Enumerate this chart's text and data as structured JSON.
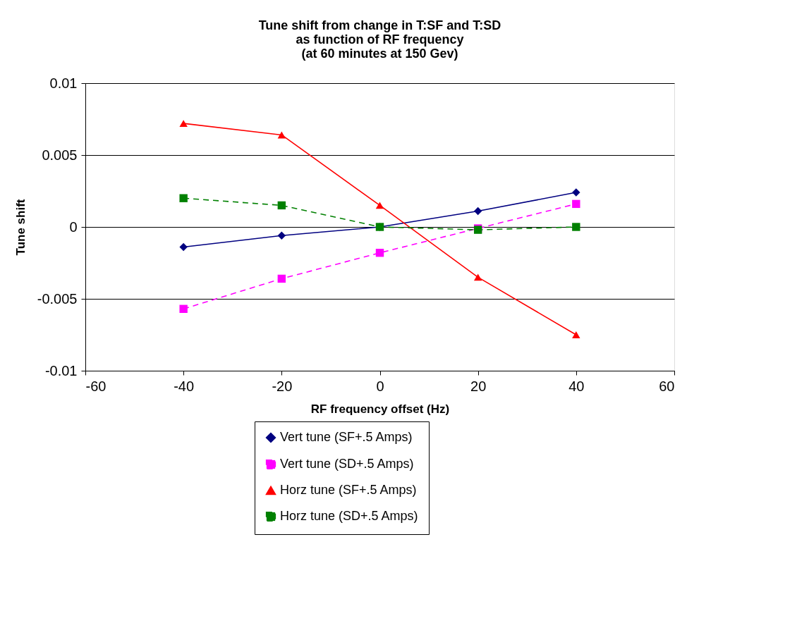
{
  "chart_data": {
    "type": "line",
    "title": "Tune shift from change in T:SF and T:SD\nas function of RF frequency\n(at 60 minutes at 150 Gev)",
    "xlabel": "RF frequency offset (Hz)",
    "ylabel": "Tune shift",
    "x": [
      -40,
      -20,
      0,
      20,
      40
    ],
    "series": [
      {
        "name": "Vert tune (SF+.5 Amps)",
        "color": "#000080",
        "marker": "diamond",
        "line_style": "solid",
        "values": [
          -0.0014,
          -0.0006,
          0,
          0.0011,
          0.0024
        ]
      },
      {
        "name": "Vert tune (SD+.5 Amps)",
        "color": "#ff00ff",
        "marker": "square",
        "line_style": "dashed",
        "values": [
          -0.0057,
          -0.0036,
          -0.0018,
          -0.0001,
          0.0016
        ]
      },
      {
        "name": "Horz tune (SF+.5 Amps)",
        "color": "#ff0000",
        "marker": "triangle",
        "line_style": "solid",
        "values": [
          0.0072,
          0.0064,
          0.0015,
          -0.0035,
          -0.0075
        ]
      },
      {
        "name": "Horz tune (SD+.5 Amps)",
        "color": "#008000",
        "marker": "square",
        "line_style": "dashed",
        "values": [
          0.002,
          0.0015,
          0,
          -0.0002,
          0
        ]
      }
    ],
    "xlim": [
      -60,
      60
    ],
    "xticks": [
      -60,
      -40,
      -20,
      0,
      20,
      40,
      60
    ],
    "ylim": [
      -0.01,
      0.01
    ],
    "yticks": [
      -0.01,
      -0.005,
      0,
      0.005,
      0.01
    ],
    "grid": "y",
    "legend": "bottom"
  }
}
